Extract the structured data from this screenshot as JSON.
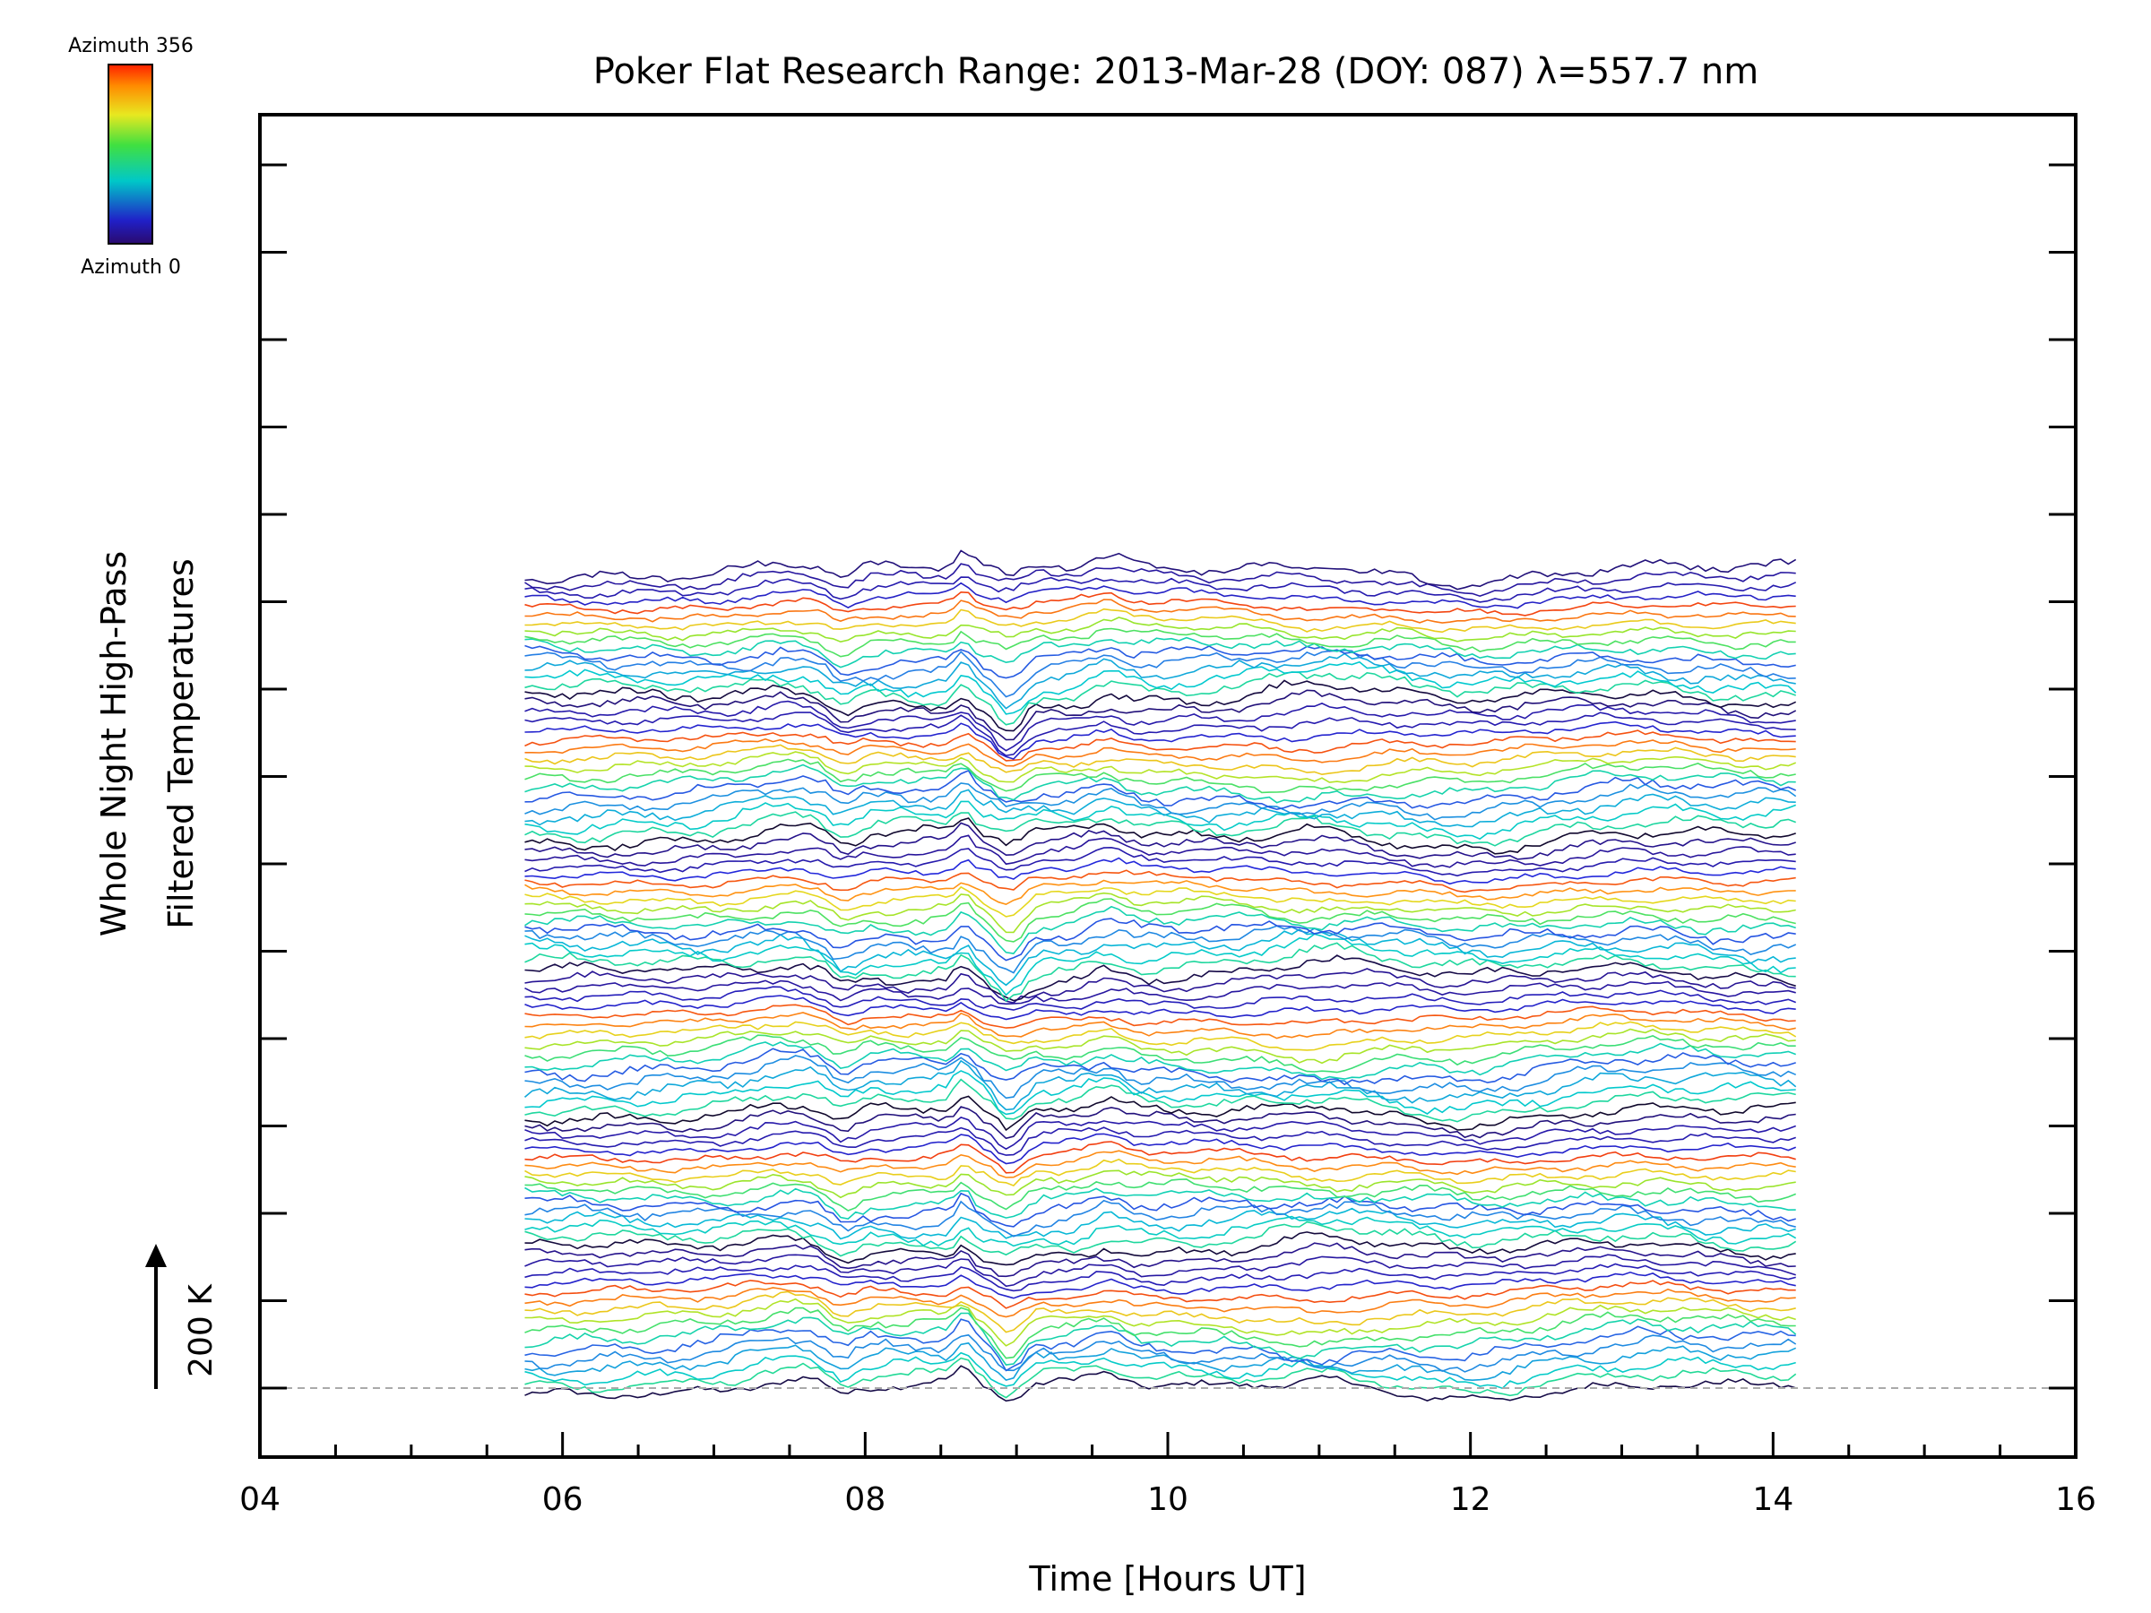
{
  "chart_data": {
    "type": "line",
    "title": "Poker Flat Research Range: 2013-Mar-28 (DOY: 087) λ=557.7 nm",
    "xlabel": "Time [Hours UT]",
    "ylabel_line1": "Whole Night High-Pass",
    "ylabel_line2": "Filtered Temperatures",
    "xlim": [
      4,
      16
    ],
    "x_ticks": [
      "04",
      "06",
      "08",
      "10",
      "12",
      "14",
      "16"
    ],
    "x_tick_values": [
      4,
      6,
      8,
      10,
      12,
      14,
      16
    ],
    "data_time_range": [
      5.75,
      14.15
    ],
    "num_traces": 96,
    "trace_offset_K": 21,
    "y_tick_interval_K": 200,
    "scale_bar_label": "200 K",
    "colorbar": {
      "top_label": "Azimuth 356",
      "bottom_label": "Azimuth 0",
      "min": 0,
      "max": 356,
      "colormap": "rainbow"
    },
    "baseline": "dashed grey line at lowest trace"
  },
  "colors": {
    "axis": "#000000",
    "baseline": "#aaaaaa",
    "background": "#ffffff"
  }
}
